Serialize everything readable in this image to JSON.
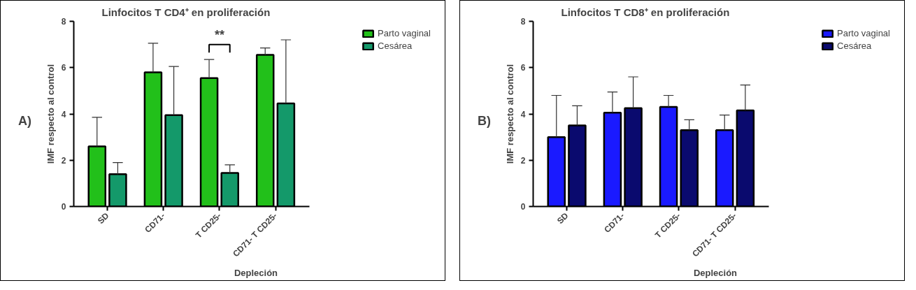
{
  "chart_data": [
    {
      "type": "bar",
      "title": "Linfocitos T CD4⁺ en proliferación",
      "xlabel": "Depleción",
      "ylabel": "IMF respecto al control",
      "categories": [
        "SD",
        "CD71-",
        "T CD25-",
        "CD71- T CD25-"
      ],
      "series": [
        {
          "name": "Parto vaginal",
          "color": "#22c01a",
          "values": [
            2.6,
            5.8,
            5.55,
            6.55
          ],
          "errors": [
            [
              2.6,
              3.85
            ],
            [
              5.8,
              7.05
            ],
            [
              5.55,
              6.35
            ],
            [
              6.55,
              6.85
            ]
          ]
        },
        {
          "name": "Cesárea",
          "color": "#14996a",
          "values": [
            1.4,
            3.95,
            1.45,
            4.45
          ],
          "errors": [
            [
              1.4,
              1.9
            ],
            [
              3.95,
              6.05
            ],
            [
              1.45,
              1.8
            ],
            [
              4.45,
              7.2
            ]
          ]
        }
      ],
      "ylim": [
        0,
        8
      ],
      "yticks": [
        0,
        2,
        4,
        6,
        8
      ],
      "grid": false,
      "legend": "right",
      "annotations": [
        "A)",
        "**"
      ]
    },
    {
      "type": "bar",
      "title": "Linfocitos T CD8⁺ en proliferación",
      "xlabel": "Depleción",
      "ylabel": "IMF respecto al control",
      "categories": [
        "SD",
        "CD71-",
        "T CD25-",
        "CD71- T CD25-"
      ],
      "series": [
        {
          "name": "Parto vaginal",
          "color": "#1a1aff",
          "values": [
            3.0,
            4.05,
            4.3,
            3.3
          ],
          "errors": [
            [
              3.0,
              4.8
            ],
            [
              4.05,
              4.95
            ],
            [
              4.3,
              4.8
            ],
            [
              3.3,
              3.95
            ]
          ]
        },
        {
          "name": "Cesárea",
          "color": "#0a0a6e",
          "values": [
            3.5,
            4.25,
            3.3,
            4.15
          ],
          "errors": [
            [
              3.5,
              4.35
            ],
            [
              4.25,
              5.6
            ],
            [
              3.3,
              3.75
            ],
            [
              4.15,
              5.25
            ]
          ]
        }
      ],
      "ylim": [
        0,
        8
      ],
      "yticks": [
        0,
        2,
        4,
        6,
        8
      ],
      "grid": false,
      "legend": "right",
      "annotations": [
        "B)"
      ]
    }
  ]
}
